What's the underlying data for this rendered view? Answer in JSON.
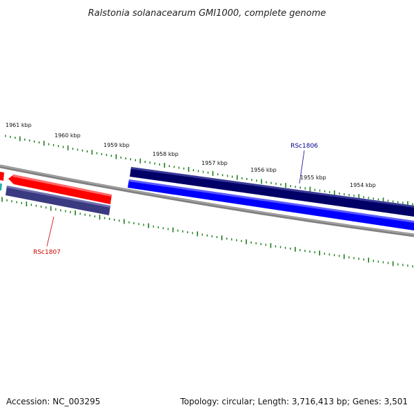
{
  "header": {
    "title": "Ralstonia solanacearum GMI1000, complete genome"
  },
  "footer": {
    "accession": "Accession: NC_003295",
    "summary": "Topology: circular; Length: 3,716,413 bp; Genes: 3,501"
  },
  "ruler": {
    "labels": [
      "1961 kbp",
      "1960 kbp",
      "1959 kbp",
      "1958 kbp",
      "1957 kbp",
      "1956 kbp",
      "1955 kbp",
      "1954 kbp"
    ]
  },
  "genes": {
    "rsc1806": {
      "label": "RSc1806",
      "color": "#00008b"
    },
    "rsc1807": {
      "label": "RSc1807",
      "color": "#cc0000"
    }
  },
  "colors": {
    "backbone": "#808080",
    "tick": "#1a7a1a",
    "forward_cds": "#000066",
    "forward_orf": "#0000ff",
    "reverse_cds": "#ff0000",
    "reverse_orf": "#3a3a80",
    "teal_fragment": "#20b2aa"
  }
}
